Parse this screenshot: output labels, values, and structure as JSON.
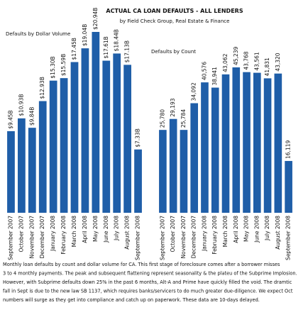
{
  "title": "ACTUAL CA LOAN DEFAULTS - ALL LENDERS",
  "subtitle": "by Field Check Group, Real Estate & Finance",
  "chart_data": [
    {
      "type": "bar",
      "title": "Defaults by Dollar Volume",
      "color": "#1f5ea8",
      "categories": [
        "September 2007",
        "October 2007",
        "November 2007",
        "December 2007",
        "January 2008",
        "February 2008",
        "March 2008",
        "April 2008",
        "May 2008",
        "June 2008",
        "July 2008",
        "August 2008",
        "September 2008"
      ],
      "values": [
        9.45,
        10.93,
        9.84,
        12.93,
        15.3,
        15.59,
        17.45,
        19.04,
        20.94,
        17.61,
        18.44,
        17.13,
        7.33
      ],
      "value_labels": [
        "$9.45B",
        "$10.93B",
        "$9.84B",
        "$12.93B",
        "$15.30B",
        "$15.59B",
        "$17.45B",
        "$19.04B",
        "$20.94B",
        "$17.61B",
        "$18.44B",
        "$17.13B",
        "$7.33B"
      ]
    },
    {
      "type": "bar",
      "title": "Defaults by Count",
      "color": "#1f5ea8",
      "categories": [
        "September 2007",
        "October 2007",
        "November 2007",
        "December 2007",
        "January 2008",
        "February 2008",
        "March 2008",
        "April 2008",
        "May 2008",
        "June 2008",
        "July 2008",
        "August 2008",
        "September 2008"
      ],
      "values": [
        25780,
        29193,
        25784,
        34092,
        40576,
        38941,
        43062,
        45239,
        43768,
        43561,
        41831,
        43320,
        16119
      ],
      "value_labels": [
        "25,780",
        "29,193",
        "25,784",
        "34,092",
        "40,576",
        "38,941",
        "43,062",
        "45,239",
        "43,768",
        "43,561",
        "41,831",
        "43,320",
        "16,119"
      ]
    }
  ],
  "caption_lines": [
    "Monthly loan defaults by count and dollar volume for CA. This first stage of foreclosure comes after a borrower misses",
    "3 to 4 monthly payments. The peak and subsequent flattening represent seasonality & the plateu of the Subprime Implosion.",
    "However, with Subprime defaults down 25% in the past 6 months, Alt-A and Prime have quickly filled the void. The dramtic",
    "fall in Sept is due to the new law SB 1137, which requires banks/servicers to do much greater due-diligence. We expect Oct",
    "numbers will surge as they get into compliance and catch up on paperwork. These data are 10-days delayed."
  ]
}
